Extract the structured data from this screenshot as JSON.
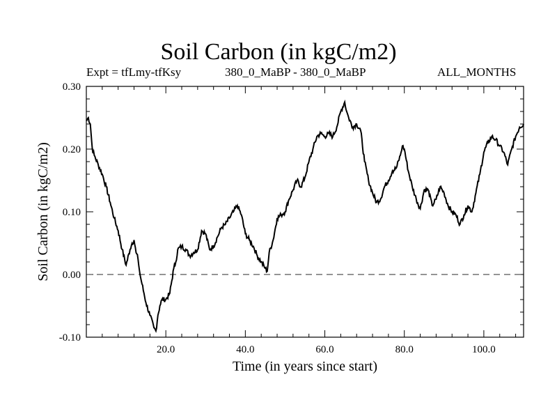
{
  "chart_data": {
    "type": "line",
    "title": "Soil Carbon (in kgC/m2)",
    "subtitle_left": "Expt = tfLmy-tfKsy",
    "subtitle_center": "380_0_MaBP - 380_0_MaBP",
    "subtitle_right": "ALL_MONTHS",
    "xlabel": "Time (in years since start)",
    "ylabel": "Soil Carbon (in kgC/m2)",
    "xlim": [
      0,
      110
    ],
    "ylim": [
      -0.1,
      0.3
    ],
    "x_ticks": [
      20,
      40,
      60,
      80,
      100
    ],
    "x_tick_labels": [
      "20.0",
      "40.0",
      "60.0",
      "80.0",
      "100.0"
    ],
    "y_ticks": [
      -0.1,
      0.0,
      0.1,
      0.2,
      0.3
    ],
    "y_tick_labels": [
      "-0.10",
      "0.00",
      "0.10",
      "0.20",
      "0.30"
    ],
    "reference_line": {
      "y": 0.0,
      "style": "dashed"
    },
    "series": [
      {
        "name": "Soil Carbon",
        "x": [
          0,
          0.5,
          1,
          1.5,
          2,
          3,
          4,
          5,
          6,
          7,
          8,
          9,
          10,
          11,
          11.5,
          12,
          12.5,
          13,
          13.5,
          14,
          14.5,
          15,
          16,
          17,
          17.5,
          18,
          18.5,
          19,
          20,
          21,
          22,
          22.5,
          23,
          24,
          25,
          26,
          27,
          28,
          29,
          30,
          31,
          32,
          33,
          34,
          35,
          36,
          37,
          38,
          39,
          40,
          41,
          42,
          43,
          44,
          45,
          45.5,
          46,
          47,
          48,
          49,
          50,
          51,
          52,
          53,
          54,
          55,
          56,
          57,
          58,
          59,
          60,
          61,
          62,
          63,
          64,
          65,
          65.5,
          66,
          67,
          68,
          69,
          70,
          71,
          72,
          73,
          74,
          75,
          76,
          77,
          78,
          79,
          79.5,
          80,
          81,
          82,
          83,
          84,
          85,
          86,
          87,
          88,
          89,
          90,
          91,
          92,
          93,
          94,
          95,
          96,
          97,
          98,
          99,
          100,
          101,
          102,
          103,
          104,
          105,
          106,
          107,
          108,
          109,
          110
        ],
        "values": [
          0.245,
          0.25,
          0.24,
          0.2,
          0.19,
          0.175,
          0.16,
          0.14,
          0.115,
          0.09,
          0.07,
          0.04,
          0.015,
          0.04,
          0.05,
          0.055,
          0.035,
          0.025,
          0.0,
          -0.015,
          -0.03,
          -0.045,
          -0.065,
          -0.085,
          -0.09,
          -0.065,
          -0.05,
          -0.04,
          -0.04,
          -0.03,
          0.01,
          0.02,
          0.04,
          0.045,
          0.04,
          0.03,
          0.035,
          0.04,
          0.07,
          0.065,
          0.04,
          0.045,
          0.06,
          0.075,
          0.08,
          0.09,
          0.1,
          0.11,
          0.095,
          0.065,
          0.055,
          0.045,
          0.03,
          0.02,
          0.01,
          0.005,
          0.035,
          0.055,
          0.09,
          0.095,
          0.1,
          0.12,
          0.135,
          0.15,
          0.14,
          0.155,
          0.18,
          0.2,
          0.22,
          0.225,
          0.22,
          0.225,
          0.22,
          0.235,
          0.26,
          0.275,
          0.26,
          0.25,
          0.235,
          0.24,
          0.23,
          0.18,
          0.15,
          0.13,
          0.115,
          0.12,
          0.14,
          0.15,
          0.165,
          0.17,
          0.19,
          0.205,
          0.2,
          0.165,
          0.14,
          0.12,
          0.105,
          0.135,
          0.135,
          0.11,
          0.12,
          0.14,
          0.13,
          0.11,
          0.1,
          0.095,
          0.08,
          0.095,
          0.11,
          0.1,
          0.13,
          0.16,
          0.195,
          0.21,
          0.22,
          0.215,
          0.205,
          0.195,
          0.175,
          0.2,
          0.22,
          0.235,
          0.24
        ]
      }
    ]
  }
}
